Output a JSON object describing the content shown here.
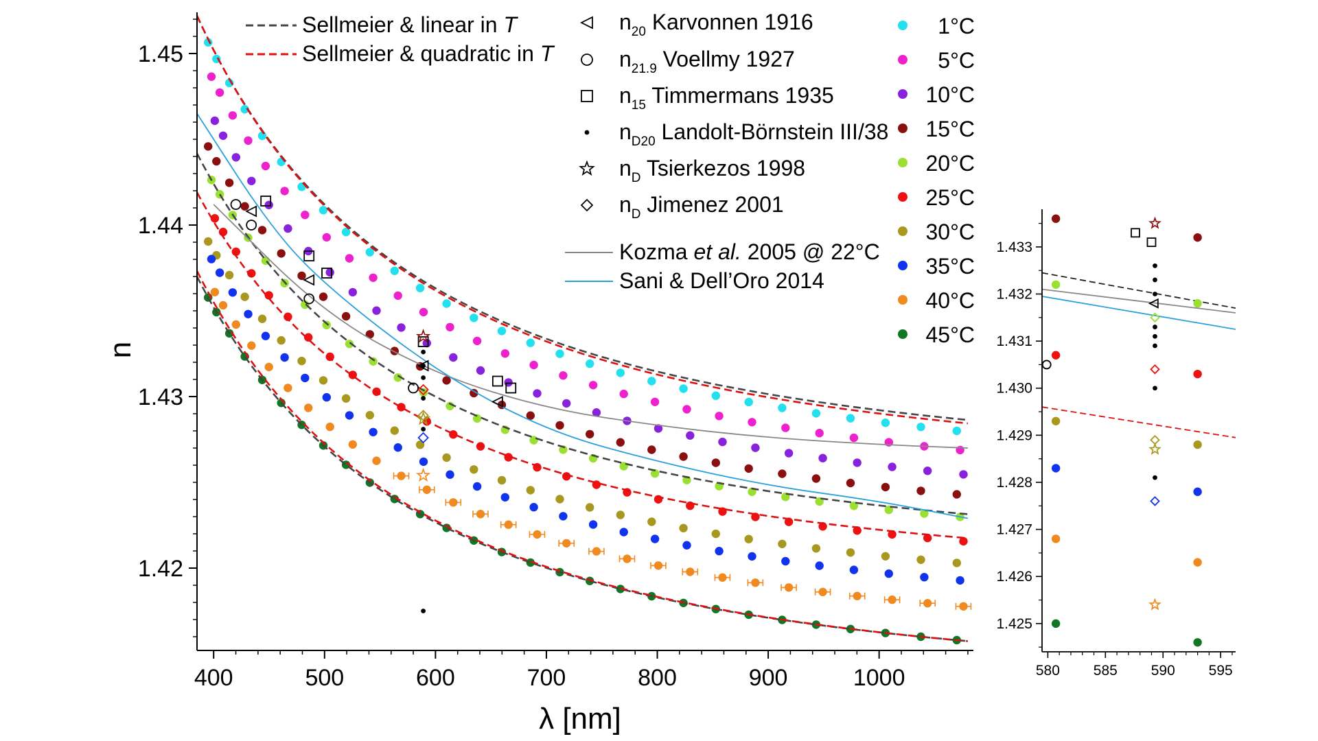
{
  "chart_data": [
    {
      "type": "scatter",
      "xlabel": "λ [nm]",
      "ylabel": "n",
      "xlim": [
        385,
        1085
      ],
      "ylim": [
        1.4152,
        1.4524
      ],
      "x_ticks": [
        400,
        500,
        600,
        700,
        800,
        900,
        1000
      ],
      "y_ticks": [
        1.42,
        1.43,
        1.44,
        1.45
      ],
      "x_tick_labels": [
        "400",
        "500",
        "600",
        "700",
        "800",
        "900",
        "1000"
      ],
      "y_tick_labels": [
        "1.42",
        "1.43",
        "1.44",
        "1.45"
      ],
      "lines_legend": [
        {
          "label": "Sellmeier & linear in ",
          "italic_part": "T",
          "color": "#444444",
          "dash": true
        },
        {
          "label": "Sellmeier & quadratic in ",
          "italic_part": "T",
          "color": "#dd1111",
          "dash": true
        }
      ],
      "refs_legend": [
        {
          "marker": "triangle-left",
          "base": "n",
          "sub": "20",
          "label": "Karvonnen 1916"
        },
        {
          "marker": "circle-open",
          "base": "n",
          "sub": "21.9",
          "label": "Voellmy 1927"
        },
        {
          "marker": "square-open",
          "base": "n",
          "sub": "15",
          "label": "Timmermans 1935"
        },
        {
          "marker": "dot",
          "base": "n",
          "sub": "D20",
          "label": "Landolt-Börnstein III/38"
        },
        {
          "marker": "star-open",
          "base": "n",
          "sub": "D",
          "label": "Tsierkezos 1998"
        },
        {
          "marker": "diamond-open",
          "base": "n",
          "sub": "D",
          "label": "Jimenez 2001"
        }
      ],
      "curves_legend": [
        {
          "label_pre": "Kozma ",
          "label_italic": "et al.",
          "label_post": " 2005 @ 22°C",
          "color": "#888888"
        },
        {
          "label_pre": "Sani & Dell’Oro 2014",
          "label_italic": "",
          "label_post": "",
          "color": "#2aa0dd"
        }
      ],
      "series": [
        {
          "name": "1°C",
          "temperature": 1,
          "color": "#22e0ee",
          "n_at_400": 1.45,
          "n_at_1070": 1.428
        },
        {
          "name": "5°C",
          "temperature": 5,
          "color": "#ee22cc",
          "n_at_400": 1.4484,
          "n_at_1070": 1.4269
        },
        {
          "name": "10°C",
          "temperature": 10,
          "color": "#8822dd",
          "n_at_400": 1.4462,
          "n_at_1070": 1.4255
        },
        {
          "name": "15°C",
          "temperature": 15,
          "color": "#8a1010",
          "n_at_400": 1.444,
          "n_at_1070": 1.4243
        },
        {
          "name": "20°C",
          "temperature": 20,
          "color": "#99e033",
          "n_at_400": 1.4424,
          "n_at_1070": 1.423
        },
        {
          "name": "25°C",
          "temperature": 25,
          "color": "#ee1111",
          "n_at_400": 1.4405,
          "n_at_1070": 1.4216
        },
        {
          "name": "30°C",
          "temperature": 30,
          "color": "#a89820",
          "n_at_400": 1.4385,
          "n_at_1070": 1.4203
        },
        {
          "name": "35°C",
          "temperature": 35,
          "color": "#1133ee",
          "n_at_400": 1.4378,
          "n_at_1070": 1.4193
        },
        {
          "name": "40°C",
          "temperature": 40,
          "color": "#f08a20",
          "n_at_400": 1.4362,
          "n_at_1070": 1.4178
        },
        {
          "name": "45°C",
          "temperature": 45,
          "color": "#117722",
          "n_at_400": 1.4352,
          "n_at_1070": 1.4158
        }
      ],
      "fit_lines": [
        {
          "name": "Sellmeier & linear in T (1°C)",
          "style": "linear",
          "n_at_400": 1.4502,
          "n_at_1070": 1.4287
        },
        {
          "name": "Sellmeier & quadratic in T (1°C)",
          "style": "quadratic",
          "n_at_400": 1.4502,
          "n_at_1070": 1.4285
        },
        {
          "name": "Sellmeier & linear in T (20°C)",
          "style": "linear",
          "n_at_400": 1.4424,
          "n_at_1070": 1.4232
        },
        {
          "name": "Sellmeier & quadratic in T (25°C)",
          "style": "quadratic",
          "n_at_400": 1.4402,
          "n_at_1070": 1.4218
        },
        {
          "name": "Sellmeier & linear in T (45°C)",
          "style": "linear",
          "n_at_400": 1.4352,
          "n_at_1070": 1.4158
        },
        {
          "name": "Sellmeier & quadratic in T (45°C)",
          "style": "quadratic",
          "n_at_400": 1.4355,
          "n_at_1070": 1.4158
        }
      ],
      "model_curves": [
        {
          "name": "Kozma et al. 2005 @ 22°C",
          "points": [
            [
              400,
              1.4412
            ],
            [
              500,
              1.4348
            ],
            [
              600,
              1.4313
            ],
            [
              700,
              1.4293
            ],
            [
              800,
              1.4283
            ],
            [
              900,
              1.4276
            ],
            [
              1000,
              1.4272
            ],
            [
              1080,
              1.427
            ]
          ]
        },
        {
          "name": "Sani & Dell'Oro 2014",
          "points": [
            [
              385,
              1.4465
            ],
            [
              450,
              1.44
            ],
            [
              500,
              1.4365
            ],
            [
              600,
              1.4315
            ],
            [
              700,
              1.428
            ],
            [
              800,
              1.4262
            ],
            [
              900,
              1.4248
            ],
            [
              1000,
              1.4239
            ],
            [
              1080,
              1.4229
            ]
          ]
        }
      ],
      "reference_points": [
        {
          "marker": "triangle-left",
          "x": 434,
          "y": 1.4408
        },
        {
          "marker": "triangle-left",
          "x": 486,
          "y": 1.4368
        },
        {
          "marker": "triangle-left",
          "x": 589,
          "y": 1.4318
        },
        {
          "marker": "triangle-left",
          "x": 656,
          "y": 1.4297
        },
        {
          "marker": "circle-open",
          "x": 420,
          "y": 1.4412
        },
        {
          "marker": "circle-open",
          "x": 434,
          "y": 1.44
        },
        {
          "marker": "circle-open",
          "x": 486,
          "y": 1.4357
        },
        {
          "marker": "circle-open",
          "x": 580,
          "y": 1.4305
        },
        {
          "marker": "square-open",
          "x": 447,
          "y": 1.4414
        },
        {
          "marker": "square-open",
          "x": 486,
          "y": 1.4382
        },
        {
          "marker": "square-open",
          "x": 502,
          "y": 1.4372
        },
        {
          "marker": "square-open",
          "x": 589,
          "y": 1.4332
        },
        {
          "marker": "square-open",
          "x": 656,
          "y": 1.4309
        },
        {
          "marker": "square-open",
          "x": 668,
          "y": 1.4305
        },
        {
          "marker": "dot",
          "x": 589,
          "y": 1.4326
        },
        {
          "marker": "dot",
          "x": 589,
          "y": 1.4318
        },
        {
          "marker": "dot",
          "x": 589,
          "y": 1.4311
        },
        {
          "marker": "dot",
          "x": 589,
          "y": 1.4299
        },
        {
          "marker": "dot",
          "x": 589,
          "y": 1.4281
        },
        {
          "marker": "dot",
          "x": 589,
          "y": 1.4175
        },
        {
          "marker": "star-open",
          "x": 589,
          "y": 1.4335,
          "color": "#8a1010"
        },
        {
          "marker": "star-open",
          "x": 589,
          "y": 1.4287,
          "color": "#a89820"
        },
        {
          "marker": "star-open",
          "x": 589,
          "y": 1.4254,
          "color": "#f08a20"
        },
        {
          "marker": "diamond-open",
          "x": 589,
          "y": 1.4304,
          "color": "#ee1111"
        },
        {
          "marker": "diamond-open",
          "x": 589,
          "y": 1.4289,
          "color": "#a89820"
        },
        {
          "marker": "diamond-open",
          "x": 589,
          "y": 1.4276,
          "color": "#1133ee"
        }
      ]
    },
    {
      "type": "scatter",
      "title": "",
      "xlim": [
        579.5,
        596.3
      ],
      "ylim": [
        1.4244,
        1.4338
      ],
      "x_ticks": [
        580,
        585,
        590,
        595
      ],
      "y_ticks": [
        1.425,
        1.426,
        1.427,
        1.428,
        1.429,
        1.43,
        1.431,
        1.432,
        1.433
      ],
      "x_tick_labels": [
        "580",
        "585",
        "590",
        "595"
      ],
      "y_tick_labels": [
        "1.425",
        "1.426",
        "1.427",
        "1.428",
        "1.429",
        "1.430",
        "1.431",
        "1.432",
        "1.433"
      ],
      "points": [
        {
          "x": 580.7,
          "y": 1.4336,
          "color": "#8a1010",
          "marker": "dot-filled"
        },
        {
          "x": 580.7,
          "y": 1.4322,
          "color": "#99e033",
          "marker": "dot-filled"
        },
        {
          "x": 580.7,
          "y": 1.4307,
          "color": "#ee1111",
          "marker": "dot-filled"
        },
        {
          "x": 580.7,
          "y": 1.4293,
          "color": "#a89820",
          "marker": "dot-filled"
        },
        {
          "x": 580.7,
          "y": 1.4283,
          "color": "#1133ee",
          "marker": "dot-filled"
        },
        {
          "x": 580.7,
          "y": 1.4268,
          "color": "#f08a20",
          "marker": "dot-filled"
        },
        {
          "x": 580.7,
          "y": 1.425,
          "color": "#117722",
          "marker": "dot-filled"
        },
        {
          "x": 593.0,
          "y": 1.4332,
          "color": "#8a1010",
          "marker": "dot-filled"
        },
        {
          "x": 593.0,
          "y": 1.4318,
          "color": "#99e033",
          "marker": "dot-filled"
        },
        {
          "x": 593.0,
          "y": 1.4303,
          "color": "#ee1111",
          "marker": "dot-filled"
        },
        {
          "x": 593.0,
          "y": 1.4288,
          "color": "#a89820",
          "marker": "dot-filled"
        },
        {
          "x": 593.0,
          "y": 1.4278,
          "color": "#1133ee",
          "marker": "dot-filled"
        },
        {
          "x": 593.0,
          "y": 1.4263,
          "color": "#f08a20",
          "marker": "dot-filled"
        },
        {
          "x": 593.0,
          "y": 1.4246,
          "color": "#117722",
          "marker": "dot-filled"
        },
        {
          "x": 579.9,
          "y": 1.4305,
          "color": "#000000",
          "marker": "circle-open"
        },
        {
          "x": 587.6,
          "y": 1.4333,
          "color": "#000000",
          "marker": "square-open"
        },
        {
          "x": 589.0,
          "y": 1.4331,
          "color": "#000000",
          "marker": "square-open"
        },
        {
          "x": 589.3,
          "y": 1.4335,
          "color": "#8a1010",
          "marker": "star-open"
        },
        {
          "x": 589.3,
          "y": 1.4326,
          "color": "#000000",
          "marker": "dot"
        },
        {
          "x": 589.3,
          "y": 1.4323,
          "color": "#000000",
          "marker": "dot"
        },
        {
          "x": 589.3,
          "y": 1.432,
          "color": "#000000",
          "marker": "dot"
        },
        {
          "x": 589.2,
          "y": 1.4318,
          "color": "#000000",
          "marker": "triangle-left"
        },
        {
          "x": 589.3,
          "y": 1.4315,
          "color": "#99e033",
          "marker": "diamond-open"
        },
        {
          "x": 589.3,
          "y": 1.4313,
          "color": "#000000",
          "marker": "dot"
        },
        {
          "x": 589.3,
          "y": 1.4311,
          "color": "#000000",
          "marker": "dot"
        },
        {
          "x": 589.3,
          "y": 1.4309,
          "color": "#000000",
          "marker": "dot"
        },
        {
          "x": 589.3,
          "y": 1.4304,
          "color": "#ee1111",
          "marker": "diamond-open"
        },
        {
          "x": 589.3,
          "y": 1.43,
          "color": "#000000",
          "marker": "dot"
        },
        {
          "x": 589.3,
          "y": 1.4289,
          "color": "#a89820",
          "marker": "diamond-open"
        },
        {
          "x": 589.3,
          "y": 1.4287,
          "color": "#a89820",
          "marker": "star-open"
        },
        {
          "x": 589.3,
          "y": 1.4281,
          "color": "#000000",
          "marker": "dot"
        },
        {
          "x": 589.3,
          "y": 1.4276,
          "color": "#1133ee",
          "marker": "diamond-open"
        },
        {
          "x": 589.3,
          "y": 1.4254,
          "color": "#f08a20",
          "marker": "star-open"
        }
      ],
      "lines": [
        {
          "name": "Sellmeier & linear in T",
          "color": "#222222",
          "dash": true,
          "points": [
            [
              579.5,
              1.43245
            ],
            [
              596.3,
              1.4317
            ]
          ]
        },
        {
          "name": "Kozma et al. 2005 @ 22°C",
          "color": "#888888",
          "dash": false,
          "points": [
            [
              579.5,
              1.4321
            ],
            [
              596.3,
              1.4316
            ]
          ]
        },
        {
          "name": "Sani & Dell'Oro 2014",
          "color": "#2aa0dd",
          "dash": false,
          "points": [
            [
              579.5,
              1.43195
            ],
            [
              596.3,
              1.43125
            ]
          ]
        },
        {
          "name": "Sellmeier & quadratic in T",
          "color": "#dd1111",
          "dash": true,
          "points": [
            [
              579.5,
              1.4296
            ],
            [
              596.3,
              1.42895
            ]
          ]
        }
      ]
    }
  ]
}
